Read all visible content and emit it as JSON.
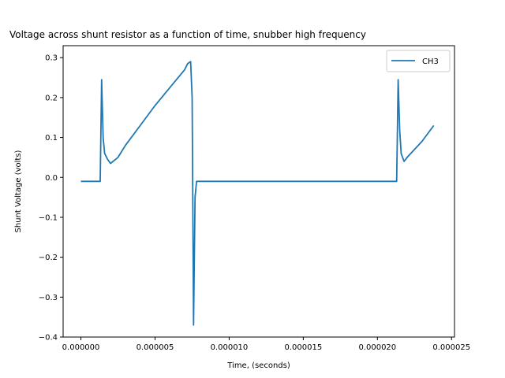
{
  "chart_data": {
    "type": "line",
    "title": "Voltage across shunt resistor as a function of time, snubber high frequency",
    "xlabel": "Time, (seconds)",
    "ylabel": "Shunt Voltage (volts)",
    "xlim": [
      -1.2e-06,
      2.52e-05
    ],
    "ylim": [
      -0.4,
      0.33
    ],
    "xticks": [
      0,
      5e-06,
      1e-05,
      1.5e-05,
      2e-05,
      2.5e-05
    ],
    "xtick_labels": [
      "0.000000",
      "0.000005",
      "0.000010",
      "0.000015",
      "0.000020",
      "0.000025"
    ],
    "yticks": [
      -0.4,
      -0.3,
      -0.2,
      -0.1,
      0.0,
      0.1,
      0.2,
      0.3
    ],
    "ytick_labels": [
      "−0.4",
      "−0.3",
      "−0.2",
      "−0.1",
      "0.0",
      "0.1",
      "0.2",
      "0.3"
    ],
    "grid": false,
    "legend": {
      "position": "top-right",
      "entries": [
        "CH3"
      ]
    },
    "series": [
      {
        "name": "CH3",
        "color": "#1f77b4",
        "x": [
          0,
          1.3e-06,
          1.4e-06,
          1.5e-06,
          1.6e-06,
          1.8e-06,
          2e-06,
          2.5e-06,
          3e-06,
          4e-06,
          5e-06,
          6e-06,
          7e-06,
          7.2e-06,
          7.4e-06,
          7.5e-06,
          7.6e-06,
          7.7e-06,
          7.8e-06,
          8e-06,
          9e-06,
          1.2e-05,
          1.5e-05,
          1.8e-05,
          2.13e-05,
          2.14e-05,
          2.15e-05,
          2.16e-05,
          2.18e-05,
          2.2e-05,
          2.3e-05,
          2.38e-05
        ],
        "y": [
          -0.01,
          -0.01,
          0.245,
          0.1,
          0.06,
          0.045,
          0.035,
          0.05,
          0.08,
          0.13,
          0.18,
          0.225,
          0.27,
          0.285,
          0.29,
          0.2,
          -0.37,
          -0.05,
          -0.01,
          -0.01,
          -0.01,
          -0.01,
          -0.01,
          -0.01,
          -0.01,
          0.245,
          0.12,
          0.06,
          0.04,
          0.05,
          0.09,
          0.13
        ]
      }
    ]
  }
}
